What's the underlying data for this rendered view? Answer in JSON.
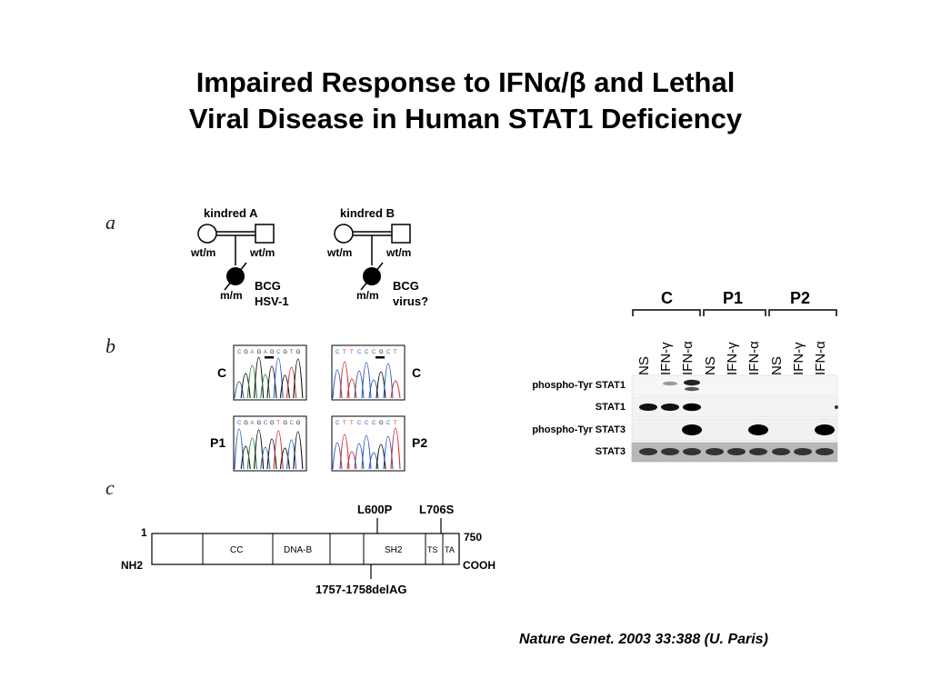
{
  "slide": {
    "title_line1": "Impaired Response to IFNα/β and Lethal",
    "title_line2": "Viral Disease in Human STAT1 Deficiency",
    "citation": "Nature Genet. 2003 33:388 (U. Paris)"
  },
  "panels": {
    "a": {
      "letter": "a",
      "kindreds": [
        {
          "name": "kindred A",
          "mother": "wt/m",
          "father": "wt/m",
          "child": "m/m",
          "phenotype_line1": "BCG",
          "phenotype_line2": "HSV-1"
        },
        {
          "name": "kindred B",
          "mother": "wt/m",
          "father": "wt/m",
          "child": "m/m",
          "phenotype_line1": "BCG",
          "phenotype_line2": "virus?"
        }
      ]
    },
    "b": {
      "letter": "b",
      "traces": [
        {
          "label": "C",
          "seq": "CGAGAGCGTG"
        },
        {
          "label": "C",
          "seq": "CTTCCCGCT"
        },
        {
          "label": "P1",
          "seq": "CGAGCGTGCG"
        },
        {
          "label": "P2",
          "seq": "CTTCCCGCT"
        }
      ]
    },
    "c": {
      "letter": "c",
      "start": "1",
      "end": "750",
      "n_term": "NH2",
      "c_term": "COOH",
      "domains": [
        "CC",
        "DNA-B",
        "SH2",
        "TS",
        "TA"
      ],
      "mutation_top1": "L600P",
      "mutation_top2": "L706S",
      "mutation_bottom": "1757-1758delAG"
    },
    "blot": {
      "groups": [
        "C",
        "P1",
        "P2"
      ],
      "lanes": [
        "NS",
        "IFN-γ",
        "IFN-α",
        "NS",
        "IFN-γ",
        "IFN-α",
        "NS",
        "IFN-γ",
        "IFN-α"
      ],
      "rows": [
        "phospho-Tyr STAT1",
        "STAT1",
        "phospho-Tyr STAT3",
        "STAT3"
      ]
    }
  }
}
